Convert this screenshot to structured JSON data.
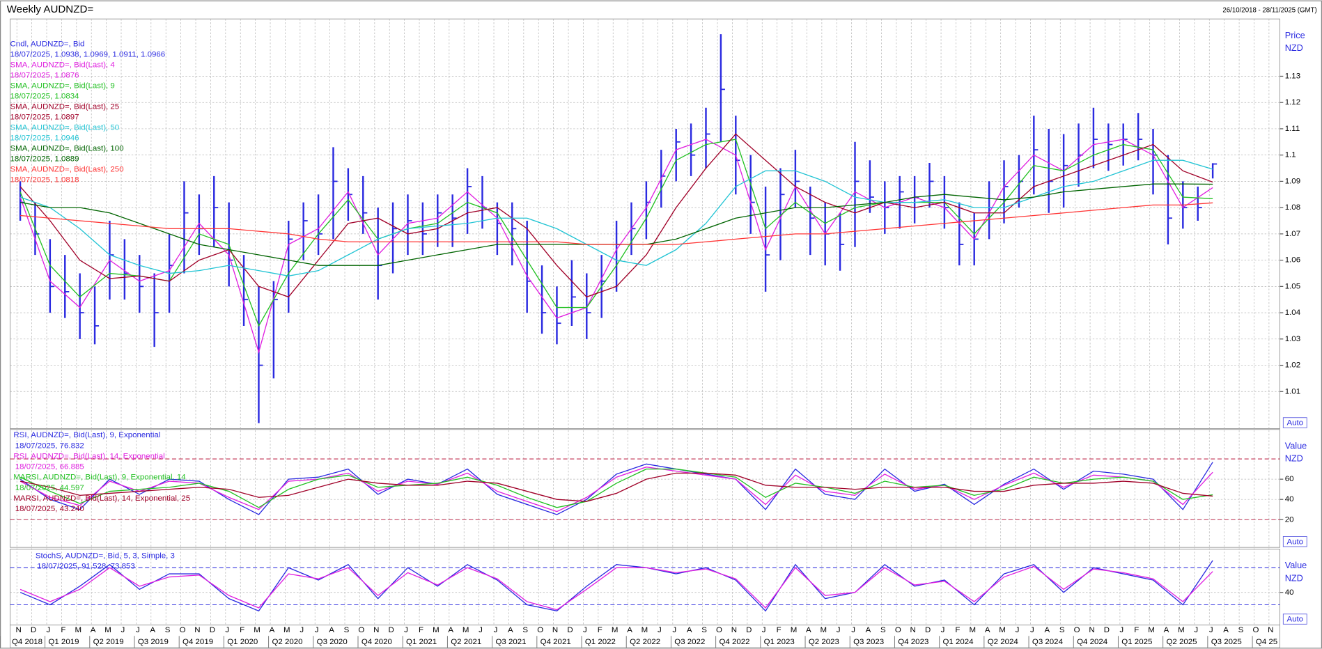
{
  "header": {
    "title": "Weekly AUDNZD=",
    "range": "26/10/2018 - 28/11/2025 (GMT)"
  },
  "x_axis": {
    "categories": [
      "N",
      "D",
      "J",
      "F",
      "M",
      "A",
      "M",
      "J",
      "J",
      "A",
      "S",
      "O",
      "N",
      "D",
      "J",
      "F",
      "M",
      "A",
      "M",
      "J",
      "J",
      "A",
      "S",
      "O",
      "N",
      "D",
      "J",
      "F",
      "M",
      "A",
      "M",
      "J",
      "J",
      "A",
      "S",
      "O",
      "N",
      "D",
      "J",
      "F",
      "M",
      "A",
      "M",
      "J",
      "J",
      "A",
      "S",
      "O",
      "N",
      "D",
      "J",
      "F",
      "M",
      "A",
      "M",
      "J",
      "J",
      "A",
      "S",
      "O",
      "N",
      "D",
      "J",
      "F",
      "M",
      "A",
      "M",
      "J",
      "J",
      "A",
      "S",
      "O",
      "N",
      "D",
      "J",
      "F",
      "M",
      "A",
      "M",
      "J",
      "J",
      "A",
      "S",
      "O",
      "N"
    ],
    "quarters": [
      "Q4 2018",
      "Q1 2019",
      "Q2 2019",
      "Q3 2019",
      "Q4 2019",
      "Q1 2020",
      "Q2 2020",
      "Q3 2020",
      "Q4 2020",
      "Q1 2021",
      "Q2 2021",
      "Q3 2021",
      "Q4 2021",
      "Q1 2022",
      "Q2 2022",
      "Q3 2022",
      "Q4 2022",
      "Q1 2023",
      "Q2 2023",
      "Q3 2023",
      "Q4 2023",
      "Q1 2024",
      "Q2 2024",
      "Q3 2024",
      "Q4 2024",
      "Q1 2025",
      "Q2 2025",
      "Q3 2025",
      "Q4 25"
    ]
  },
  "chart_data": [
    {
      "type": "candlestick",
      "y_label": "Price",
      "y_unit": "NZD",
      "scale_mode": "Auto",
      "ylim": [
        0.9959,
        1.1518
      ],
      "yticks": [
        1.01,
        1.02,
        1.03,
        1.04,
        1.05,
        1.06,
        1.07,
        1.08,
        1.09,
        1.1,
        1.11,
        1.12,
        1.13
      ],
      "grid": true,
      "candles": {
        "name": "Cndl, AUDNZD=, Bid",
        "legend_value": "18/07/2025, 1.0938, 1.0969, 1.0911, 1.0966",
        "color": "#2a2ae0",
        "high": [
          1.09,
          1.082,
          1.068,
          1.062,
          1.055,
          1.05,
          1.075,
          1.068,
          1.062,
          1.055,
          1.07,
          1.09,
          1.085,
          1.092,
          1.082,
          1.062,
          1.05,
          1.052,
          1.075,
          1.082,
          1.085,
          1.103,
          1.095,
          1.092,
          1.08,
          1.082,
          1.085,
          1.082,
          1.085,
          1.085,
          1.095,
          1.092,
          1.082,
          1.082,
          1.075,
          1.058,
          1.05,
          1.06,
          1.055,
          1.062,
          1.075,
          1.082,
          1.09,
          1.102,
          1.11,
          1.112,
          1.118,
          1.146,
          1.115,
          1.1,
          1.088,
          1.095,
          1.102,
          1.088,
          1.082,
          1.078,
          1.105,
          1.098,
          1.09,
          1.092,
          1.092,
          1.097,
          1.092,
          1.082,
          1.078,
          1.09,
          1.098,
          1.1,
          1.115,
          1.11,
          1.108,
          1.112,
          1.118,
          1.112,
          1.112,
          1.116,
          1.11,
          1.1,
          1.09,
          1.088,
          1.0969
        ],
        "low": [
          1.075,
          1.062,
          1.04,
          1.038,
          1.03,
          1.028,
          1.045,
          1.045,
          1.04,
          1.027,
          1.04,
          1.055,
          1.062,
          1.065,
          1.05,
          1.035,
          0.998,
          1.015,
          1.04,
          1.06,
          1.062,
          1.068,
          1.075,
          1.07,
          1.045,
          1.055,
          1.062,
          1.062,
          1.065,
          1.065,
          1.07,
          1.072,
          1.062,
          1.058,
          1.04,
          1.032,
          1.028,
          1.035,
          1.03,
          1.038,
          1.048,
          1.062,
          1.068,
          1.08,
          1.09,
          1.092,
          1.095,
          1.105,
          1.085,
          1.07,
          1.048,
          1.06,
          1.08,
          1.062,
          1.058,
          1.056,
          1.065,
          1.078,
          1.07,
          1.072,
          1.074,
          1.08,
          1.072,
          1.058,
          1.058,
          1.068,
          1.074,
          1.08,
          1.085,
          1.078,
          1.08,
          1.088,
          1.095,
          1.094,
          1.096,
          1.098,
          1.085,
          1.066,
          1.072,
          1.075,
          1.0911
        ],
        "close": [
          1.082,
          1.07,
          1.05,
          1.048,
          1.04,
          1.035,
          1.062,
          1.055,
          1.05,
          1.04,
          1.058,
          1.078,
          1.072,
          1.08,
          1.06,
          1.045,
          1.02,
          1.045,
          1.068,
          1.075,
          1.07,
          1.09,
          1.085,
          1.078,
          1.058,
          1.072,
          1.075,
          1.07,
          1.078,
          1.076,
          1.088,
          1.08,
          1.074,
          1.072,
          1.052,
          1.04,
          1.036,
          1.046,
          1.04,
          1.052,
          1.066,
          1.072,
          1.082,
          1.092,
          1.105,
          1.1,
          1.108,
          1.125,
          1.098,
          1.082,
          1.062,
          1.085,
          1.09,
          1.076,
          1.07,
          1.066,
          1.09,
          1.084,
          1.08,
          1.086,
          1.084,
          1.09,
          1.08,
          1.066,
          1.068,
          1.08,
          1.088,
          1.09,
          1.102,
          1.09,
          1.096,
          1.1,
          1.106,
          1.104,
          1.106,
          1.106,
          1.1,
          1.076,
          1.08,
          1.08,
          1.0966
        ]
      },
      "series": [
        {
          "name": "SMA, AUDNZD=, Bid(Last), 4",
          "legend_value": "18/07/2025, 1.0876",
          "color": "#e020e0",
          "values": [
            1.084,
            1.052,
            1.042,
            1.06,
            1.052,
            1.056,
            1.074,
            1.062,
            1.025,
            1.066,
            1.072,
            1.086,
            1.062,
            1.074,
            1.076,
            1.086,
            1.076,
            1.054,
            1.038,
            1.042,
            1.064,
            1.08,
            1.102,
            1.106,
            1.1,
            1.064,
            1.088,
            1.07,
            1.086,
            1.08,
            1.084,
            1.08,
            1.068,
            1.088,
            1.1,
            1.094,
            1.104,
            1.106,
            1.1,
            1.08,
            1.0876
          ]
        },
        {
          "name": "SMA, AUDNZD=, Bid(Last), 9",
          "legend_value": "18/07/2025, 1.0834",
          "color": "#22c022",
          "values": [
            1.086,
            1.058,
            1.046,
            1.055,
            1.054,
            1.052,
            1.07,
            1.066,
            1.035,
            1.055,
            1.07,
            1.083,
            1.068,
            1.072,
            1.074,
            1.082,
            1.078,
            1.06,
            1.042,
            1.042,
            1.058,
            1.076,
            1.098,
            1.104,
            1.106,
            1.072,
            1.082,
            1.074,
            1.08,
            1.082,
            1.082,
            1.082,
            1.07,
            1.082,
            1.096,
            1.094,
            1.1,
            1.104,
            1.102,
            1.084,
            1.0834
          ]
        },
        {
          "name": "SMA, AUDNZD=, Bid(Last), 25",
          "legend_value": "18/07/2025, 1.0897",
          "color": "#a00028",
          "values": [
            1.088,
            1.075,
            1.06,
            1.053,
            1.054,
            1.052,
            1.06,
            1.064,
            1.05,
            1.046,
            1.06,
            1.074,
            1.076,
            1.07,
            1.072,
            1.078,
            1.08,
            1.072,
            1.058,
            1.046,
            1.05,
            1.062,
            1.08,
            1.095,
            1.108,
            1.098,
            1.088,
            1.082,
            1.078,
            1.082,
            1.08,
            1.082,
            1.078,
            1.078,
            1.088,
            1.092,
            1.096,
            1.1,
            1.104,
            1.094,
            1.0897
          ]
        },
        {
          "name": "SMA, AUDNZD=, Bid(Last), 50",
          "legend_value": "18/07/2025, 1.0946",
          "color": "#22c4d4",
          "values": [
            1.084,
            1.08,
            1.072,
            1.062,
            1.058,
            1.055,
            1.056,
            1.058,
            1.056,
            1.054,
            1.056,
            1.062,
            1.068,
            1.072,
            1.073,
            1.074,
            1.076,
            1.076,
            1.072,
            1.066,
            1.06,
            1.058,
            1.064,
            1.074,
            1.088,
            1.094,
            1.094,
            1.09,
            1.084,
            1.082,
            1.082,
            1.083,
            1.08,
            1.08,
            1.084,
            1.088,
            1.09,
            1.094,
            1.098,
            1.098,
            1.0946
          ]
        },
        {
          "name": "SMA, AUDNZD=, Bid(Last), 100",
          "legend_value": "18/07/2025, 1.0889",
          "color": "#006400",
          "values": [
            1.082,
            1.08,
            1.08,
            1.078,
            1.074,
            1.07,
            1.066,
            1.064,
            1.062,
            1.06,
            1.058,
            1.058,
            1.058,
            1.06,
            1.062,
            1.064,
            1.066,
            1.066,
            1.066,
            1.066,
            1.066,
            1.066,
            1.068,
            1.072,
            1.076,
            1.078,
            1.08,
            1.08,
            1.081,
            1.082,
            1.084,
            1.085,
            1.084,
            1.083,
            1.084,
            1.086,
            1.087,
            1.088,
            1.089,
            1.089,
            1.0889
          ]
        },
        {
          "name": "SMA, AUDNZD=, Bid(Last), 250",
          "legend_value": "18/07/2025, 1.0818",
          "color": "#ff3434",
          "values": [
            1.077,
            1.076,
            1.075,
            1.074,
            1.073,
            1.072,
            1.072,
            1.072,
            1.071,
            1.07,
            1.068,
            1.067,
            1.067,
            1.067,
            1.067,
            1.067,
            1.067,
            1.067,
            1.067,
            1.066,
            1.066,
            1.066,
            1.066,
            1.067,
            1.068,
            1.069,
            1.07,
            1.07,
            1.071,
            1.072,
            1.073,
            1.074,
            1.075,
            1.076,
            1.077,
            1.078,
            1.079,
            1.08,
            1.081,
            1.081,
            1.0818
          ]
        }
      ]
    },
    {
      "type": "line",
      "y_label": "Value",
      "y_unit": "NZD",
      "scale_mode": "Auto",
      "ylim": [
        -7.5,
        109.2
      ],
      "yticks": [
        20,
        40,
        60
      ],
      "grid": true,
      "ref_lines": [
        80,
        20
      ],
      "ref_color": "#c03050",
      "series": [
        {
          "name": "RSI, AUDNZD=, Bid(Last), 9, Exponential",
          "legend_value": "18/07/2025, 76.832",
          "color": "#2a2ae0",
          "values": [
            60,
            40,
            30,
            60,
            45,
            60,
            58,
            40,
            25,
            60,
            62,
            70,
            45,
            60,
            55,
            70,
            45,
            35,
            25,
            40,
            65,
            75,
            70,
            65,
            60,
            30,
            70,
            45,
            40,
            70,
            48,
            55,
            35,
            55,
            70,
            50,
            68,
            65,
            60,
            30,
            76.832
          ]
        },
        {
          "name": "RSI, AUDNZD=, Bid(Last), 14, Exponential",
          "legend_value": "18/07/2025, 66.885",
          "color": "#e020e0",
          "values": [
            58,
            42,
            34,
            58,
            48,
            58,
            56,
            42,
            30,
            58,
            60,
            66,
            48,
            58,
            55,
            66,
            48,
            38,
            28,
            42,
            62,
            72,
            68,
            64,
            60,
            35,
            64,
            48,
            44,
            65,
            50,
            54,
            40,
            54,
            66,
            52,
            64,
            62,
            58,
            35,
            66.885
          ]
        },
        {
          "name": "MARSI, AUDNZD=, Bid(Last), 9, Exponential, 14",
          "legend_value": "18/07/2025, 44.597",
          "color": "#22c022",
          "values": [
            62,
            48,
            36,
            48,
            50,
            52,
            56,
            48,
            32,
            50,
            60,
            64,
            52,
            54,
            56,
            62,
            54,
            42,
            32,
            38,
            56,
            70,
            70,
            66,
            62,
            42,
            56,
            52,
            46,
            58,
            52,
            54,
            44,
            50,
            62,
            56,
            60,
            62,
            58,
            40,
            44.597
          ]
        },
        {
          "name": "MARSI, AUDNZD=, Bid(Last), 14, Exponential, 25",
          "legend_value": "18/07/2025, 43.240",
          "color": "#a00028",
          "values": [
            58,
            52,
            44,
            46,
            48,
            50,
            52,
            50,
            42,
            44,
            52,
            60,
            56,
            54,
            54,
            58,
            56,
            48,
            40,
            38,
            46,
            60,
            66,
            66,
            64,
            54,
            52,
            52,
            50,
            52,
            52,
            52,
            48,
            48,
            54,
            56,
            56,
            58,
            56,
            46,
            43.24
          ]
        }
      ]
    },
    {
      "type": "line",
      "y_label": "Value",
      "y_unit": "NZD",
      "scale_mode": "Auto",
      "ylim": [
        -12.7,
        110
      ],
      "yticks": [
        40
      ],
      "grid": true,
      "ref_lines": [
        80,
        20
      ],
      "ref_color": "#3a3ae0",
      "series": [
        {
          "name": "StochS, AUDNZD=, Bid, 5, 3, Simple, 3",
          "legend_value": "18/07/2025, 91.528, 73.853",
          "color": "#2a2ae0",
          "values": [
            40,
            20,
            50,
            85,
            45,
            70,
            70,
            30,
            10,
            80,
            60,
            85,
            30,
            80,
            50,
            85,
            60,
            20,
            10,
            50,
            85,
            80,
            70,
            80,
            60,
            10,
            85,
            30,
            40,
            85,
            50,
            60,
            20,
            70,
            85,
            40,
            80,
            70,
            60,
            20,
            91.528
          ]
        },
        {
          "color": "#e020e0",
          "values": [
            45,
            25,
            45,
            80,
            50,
            65,
            68,
            35,
            15,
            70,
            62,
            80,
            35,
            72,
            52,
            80,
            62,
            25,
            12,
            45,
            80,
            80,
            72,
            78,
            62,
            15,
            80,
            35,
            40,
            80,
            52,
            58,
            25,
            65,
            82,
            45,
            78,
            72,
            62,
            25,
            73.853
          ]
        }
      ]
    }
  ]
}
